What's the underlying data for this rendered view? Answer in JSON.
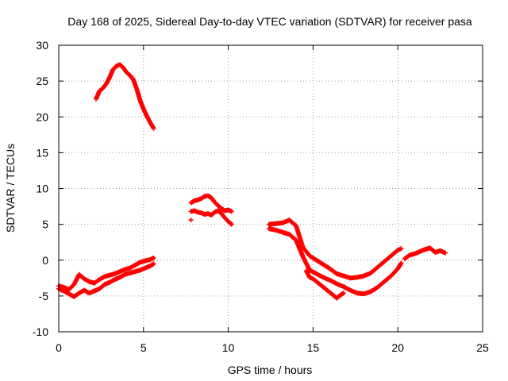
{
  "chart_data": {
    "type": "scatter",
    "title": "Day 168 of 2025, Sidereal Day-to-day VTEC variation (SDTVAR) for receiver pasa",
    "xlabel": "GPS time / hours",
    "ylabel": "SDTVAR / TECUs",
    "xlim": [
      0,
      25
    ],
    "ylim": [
      -10,
      30
    ],
    "xticks": [
      0,
      5,
      10,
      15,
      20,
      25
    ],
    "yticks": [
      -10,
      -5,
      0,
      5,
      10,
      15,
      20,
      25,
      30
    ],
    "grid": true,
    "marker": "plus",
    "color": "#ff0000",
    "series": [
      {
        "name": "early-band-upper",
        "x": [
          0.0,
          0.3,
          0.6,
          0.9,
          1.2,
          1.5,
          1.8,
          2.1,
          2.4,
          2.7,
          3.0,
          3.3,
          3.6,
          3.9,
          4.2,
          4.5,
          4.8,
          5.1,
          5.4,
          5.6
        ],
        "y": [
          -3.6,
          -3.8,
          -4.1,
          -3.4,
          -2.0,
          -2.6,
          -3.0,
          -3.2,
          -2.7,
          -2.3,
          -2.1,
          -1.9,
          -1.6,
          -1.3,
          -1.1,
          -0.7,
          -0.3,
          -0.1,
          0.1,
          0.3
        ]
      },
      {
        "name": "early-band-lower",
        "x": [
          0.0,
          0.3,
          0.6,
          0.9,
          1.2,
          1.5,
          1.8,
          2.1,
          2.4,
          2.7,
          3.0,
          3.3,
          3.6,
          3.9,
          4.2,
          4.5,
          4.8,
          5.1,
          5.4,
          5.6
        ],
        "y": [
          -4.0,
          -4.3,
          -4.7,
          -5.1,
          -4.6,
          -4.2,
          -4.6,
          -4.3,
          -4.0,
          -3.4,
          -3.1,
          -2.7,
          -2.4,
          -2.0,
          -1.8,
          -1.6,
          -1.4,
          -1.1,
          -0.8,
          -0.5
        ]
      },
      {
        "name": "early-peak",
        "x": [
          2.2,
          2.4,
          2.6,
          2.8,
          3.0,
          3.2,
          3.4,
          3.6,
          3.8,
          4.0,
          4.2,
          4.4,
          4.6,
          4.8,
          5.0,
          5.2,
          5.4,
          5.6
        ],
        "y": [
          22.5,
          23.6,
          24.0,
          24.6,
          25.5,
          26.6,
          27.1,
          27.3,
          26.9,
          26.2,
          25.8,
          25.2,
          23.9,
          22.3,
          21.1,
          20.1,
          19.2,
          18.4
        ]
      },
      {
        "name": "mid-segment-upper",
        "x": [
          7.8,
          8.0,
          8.2,
          8.4,
          8.6,
          8.8,
          9.0,
          9.2,
          9.4,
          9.6,
          9.8,
          10.0,
          10.2
        ],
        "y": [
          8.0,
          8.3,
          8.4,
          8.6,
          8.9,
          9.0,
          8.7,
          8.1,
          7.6,
          7.2,
          6.9,
          7.0,
          6.8
        ]
      },
      {
        "name": "mid-segment-lower",
        "x": [
          7.8,
          8.0,
          8.2,
          8.4,
          8.6,
          8.8,
          9.0,
          9.2,
          9.4,
          9.6,
          9.8,
          10.0,
          10.2
        ],
        "y": [
          6.8,
          6.9,
          6.7,
          6.6,
          6.4,
          6.5,
          6.3,
          6.7,
          6.9,
          6.5,
          5.9,
          5.4,
          5.0
        ]
      },
      {
        "name": "mid-outlier",
        "x": [
          7.8
        ],
        "y": [
          5.6
        ]
      },
      {
        "name": "late-band-upper",
        "x": [
          12.4,
          12.8,
          13.2,
          13.6,
          14.0,
          14.4,
          14.8,
          15.2,
          15.6,
          16.0,
          16.4,
          16.8,
          17.2,
          17.6,
          18.0,
          18.4,
          18.8,
          19.2,
          19.6,
          20.0,
          20.2
        ],
        "y": [
          5.0,
          5.1,
          5.2,
          5.6,
          4.8,
          1.8,
          0.6,
          0.0,
          -0.6,
          -1.2,
          -1.9,
          -2.2,
          -2.5,
          -2.4,
          -2.2,
          -1.8,
          -1.0,
          -0.2,
          0.6,
          1.4,
          1.6
        ]
      },
      {
        "name": "late-band-lower",
        "x": [
          12.4,
          12.8,
          13.2,
          13.6,
          14.0,
          14.4,
          14.8,
          15.2,
          15.6,
          16.0,
          16.4,
          16.8,
          17.2,
          17.6,
          18.0,
          18.4,
          18.8,
          19.2,
          19.6,
          20.0,
          20.2
        ],
        "y": [
          4.4,
          4.2,
          3.9,
          3.6,
          2.8,
          0.5,
          -1.4,
          -1.9,
          -2.4,
          -2.8,
          -3.3,
          -3.7,
          -4.2,
          -4.6,
          -4.7,
          -4.4,
          -3.8,
          -3.0,
          -2.2,
          -1.2,
          -0.4
        ]
      },
      {
        "name": "late-dip",
        "x": [
          14.6,
          14.8,
          15.0,
          16.4,
          16.6,
          16.8
        ],
        "y": [
          -1.5,
          -2.4,
          -2.6,
          -5.3,
          -4.9,
          -4.6
        ]
      },
      {
        "name": "late-tail",
        "x": [
          20.4,
          20.7,
          21.0,
          21.3,
          21.6,
          21.9,
          22.2,
          22.5,
          22.8
        ],
        "y": [
          0.2,
          0.7,
          0.9,
          1.2,
          1.5,
          1.7,
          1.1,
          1.3,
          1.0
        ]
      }
    ]
  }
}
